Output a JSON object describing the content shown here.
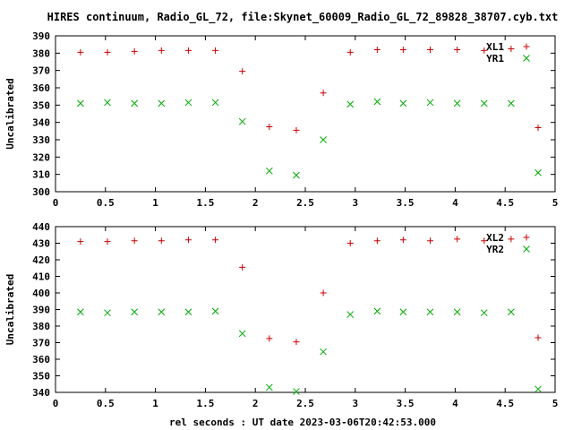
{
  "page_title": "HIRES continuum, Radio_GL_72, file:Skynet_60009_Radio_GL_72_89828_38707.cyb.txt",
  "xlabel": "rel seconds : UT date 2023-03-06T20:42:53.000",
  "colors": {
    "XL": "#cc0000",
    "YR": "#00aa00",
    "axes": "#000000"
  },
  "chart_data": [
    {
      "type": "scatter",
      "title": "HIRES continuum, Radio_GL_72, file:Skynet_60009_Radio_GL_72_89828_38707.cyb.txt",
      "xlabel": "",
      "ylabel": "Uncalibrated",
      "xlim": [
        0,
        5
      ],
      "ylim": [
        300,
        390
      ],
      "xticks": [
        "0",
        "0.5",
        "1",
        "1.5",
        "2",
        "2.5",
        "3",
        "3.5",
        "4",
        "4.5",
        "5"
      ],
      "yticks": [
        "300",
        "310",
        "320",
        "330",
        "340",
        "350",
        "360",
        "370",
        "380",
        "390"
      ],
      "legend_position": "top-right",
      "series": [
        {
          "name": "XL1",
          "marker": "plus",
          "x": [
            0.25,
            0.52,
            0.79,
            1.06,
            1.33,
            1.6,
            1.87,
            2.14,
            2.41,
            2.68,
            2.95,
            3.22,
            3.48,
            3.75,
            4.02,
            4.29,
            4.56,
            4.83
          ],
          "y": [
            380.5,
            380.5,
            381,
            381.5,
            381.5,
            381.5,
            369.5,
            337.5,
            335.5,
            357,
            380.5,
            382,
            382,
            382,
            382,
            381.5,
            382.5,
            337
          ]
        },
        {
          "name": "YR1",
          "marker": "cross",
          "x": [
            0.25,
            0.52,
            0.79,
            1.06,
            1.33,
            1.6,
            1.87,
            2.14,
            2.41,
            2.68,
            2.95,
            3.22,
            3.48,
            3.75,
            4.02,
            4.29,
            4.56,
            4.83
          ],
          "y": [
            351,
            351.5,
            351,
            351,
            351.5,
            351.5,
            340.5,
            312,
            309.5,
            330,
            350.5,
            352,
            351,
            351.5,
            351,
            351,
            351,
            311
          ]
        }
      ]
    },
    {
      "type": "scatter",
      "title": "",
      "xlabel": "rel seconds : UT date 2023-03-06T20:42:53.000",
      "ylabel": "Uncalibrated",
      "xlim": [
        0,
        5
      ],
      "ylim": [
        340,
        440
      ],
      "xticks": [
        "0",
        "0.5",
        "1",
        "1.5",
        "2",
        "2.5",
        "3",
        "3.5",
        "4",
        "4.5",
        "5"
      ],
      "yticks": [
        "340",
        "350",
        "360",
        "370",
        "380",
        "390",
        "400",
        "410",
        "420",
        "430",
        "440"
      ],
      "legend_position": "top-right",
      "series": [
        {
          "name": "XL2",
          "marker": "plus",
          "x": [
            0.25,
            0.52,
            0.79,
            1.06,
            1.33,
            1.6,
            1.87,
            2.14,
            2.41,
            2.68,
            2.95,
            3.22,
            3.48,
            3.75,
            4.02,
            4.29,
            4.56,
            4.83
          ],
          "y": [
            431,
            431,
            431.5,
            431.5,
            432,
            432,
            415.5,
            372.5,
            370.5,
            400,
            430,
            431.5,
            432,
            431.5,
            432.5,
            431.5,
            432.5,
            373
          ]
        },
        {
          "name": "YR2",
          "marker": "cross",
          "x": [
            0.25,
            0.52,
            0.79,
            1.06,
            1.33,
            1.6,
            1.87,
            2.14,
            2.41,
            2.68,
            2.95,
            3.22,
            3.48,
            3.75,
            4.02,
            4.29,
            4.56,
            4.83
          ],
          "y": [
            388.5,
            388,
            388.5,
            388.5,
            388.5,
            389,
            375.5,
            343,
            340.5,
            364.5,
            387,
            389,
            388.5,
            388.5,
            388.5,
            388,
            388.5,
            342
          ]
        }
      ]
    }
  ]
}
